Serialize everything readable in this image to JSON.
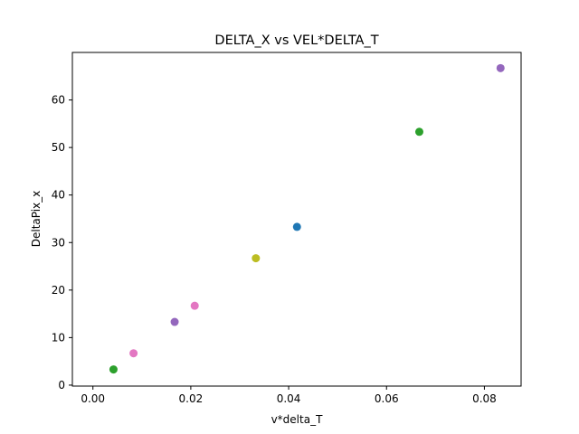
{
  "chart_data": {
    "type": "scatter",
    "title": "DELTA_X vs VEL*DELTA_T",
    "xlabel": "v*delta_T",
    "ylabel": "DeltaPix_x",
    "xlim": [
      -0.0042,
      0.0875
    ],
    "ylim": [
      -0.2,
      70.0
    ],
    "xticks": [
      0.0,
      0.02,
      0.04,
      0.06,
      0.08
    ],
    "xtick_labels": [
      "0.00",
      "0.02",
      "0.04",
      "0.06",
      "0.08"
    ],
    "yticks": [
      0,
      10,
      20,
      30,
      40,
      50,
      60
    ],
    "ytick_labels": [
      "0",
      "10",
      "20",
      "30",
      "40",
      "50",
      "60"
    ],
    "grid": false,
    "legend": "none",
    "points": [
      {
        "x": 0.0042,
        "y": 3.3,
        "color": "#2ca02c"
      },
      {
        "x": 0.0083,
        "y": 6.7,
        "color": "#e377c2"
      },
      {
        "x": 0.0167,
        "y": 13.3,
        "color": "#9467bd"
      },
      {
        "x": 0.0208,
        "y": 16.7,
        "color": "#e377c2"
      },
      {
        "x": 0.0333,
        "y": 26.7,
        "color": "#bcbd22"
      },
      {
        "x": 0.0417,
        "y": 33.3,
        "color": "#1f77b4"
      },
      {
        "x": 0.0667,
        "y": 53.3,
        "color": "#2ca02c"
      },
      {
        "x": 0.0833,
        "y": 66.7,
        "color": "#9467bd"
      }
    ]
  }
}
